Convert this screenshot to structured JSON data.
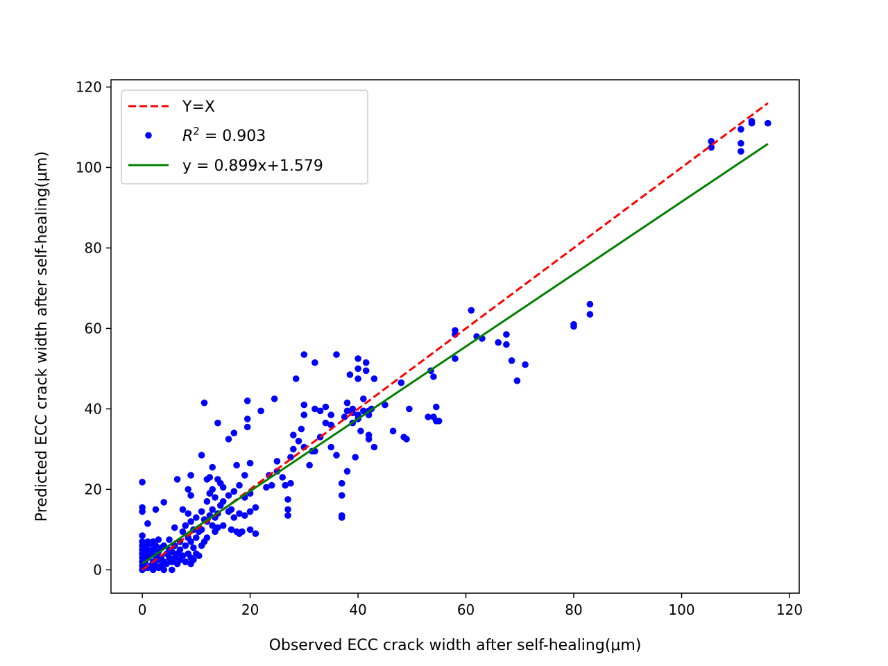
{
  "colors": {
    "points": "#0000ff",
    "identity_line": "#ff0000",
    "fit_line": "#008000",
    "axes": "#000000",
    "legend_border": "#cccccc"
  },
  "chart_data": {
    "type": "scatter",
    "title": "",
    "xlabel": "Observed ECC crack width after self-healing(μm)",
    "ylabel": "Predicted ECC crack width after self-healing(μm)",
    "xlim": [
      -5.8,
      121.8
    ],
    "ylim": [
      -5.8,
      121.8
    ],
    "xticks": [
      0,
      20,
      40,
      60,
      80,
      100,
      120
    ],
    "yticks": [
      0,
      20,
      40,
      60,
      80,
      100,
      120
    ],
    "grid": false,
    "legend_position": "top-left",
    "legend": [
      {
        "label": "Y=X",
        "style": "dashed-line",
        "color": "#ff0000"
      },
      {
        "label": "R² = 0.903",
        "style": "marker",
        "color": "#0000ff",
        "r2_symbol": "R",
        "r2_sup": "2",
        "r2_value": " = 0.903"
      },
      {
        "label": "y = 0.899x+1.579",
        "style": "solid-line",
        "color": "#008000"
      }
    ],
    "series": [
      {
        "name": "Y=X",
        "kind": "line",
        "x": [
          0,
          116
        ],
        "y": [
          0,
          116
        ]
      },
      {
        "name": "y = 0.899x+1.579",
        "kind": "line",
        "slope": 0.899,
        "intercept": 1.579,
        "x": [
          0,
          116
        ],
        "y": [
          1.579,
          105.863
        ]
      },
      {
        "name": "R² = 0.903",
        "kind": "scatter",
        "points": [
          [
            0,
            0
          ],
          [
            0,
            1
          ],
          [
            0,
            2
          ],
          [
            0,
            3
          ],
          [
            0,
            4
          ],
          [
            0,
            5
          ],
          [
            0,
            6
          ],
          [
            0,
            7
          ],
          [
            0,
            8.5
          ],
          [
            0,
            14.5
          ],
          [
            0,
            15.5
          ],
          [
            0,
            21.8
          ],
          [
            0.5,
            0.5
          ],
          [
            0.5,
            2
          ],
          [
            0.5,
            4
          ],
          [
            0.5,
            6
          ],
          [
            1,
            0.5
          ],
          [
            1,
            3
          ],
          [
            1,
            5
          ],
          [
            1,
            7
          ],
          [
            1,
            11.5
          ],
          [
            1.5,
            1
          ],
          [
            1.5,
            4
          ],
          [
            1.5,
            6.5
          ],
          [
            2,
            0
          ],
          [
            2,
            2
          ],
          [
            2,
            5
          ],
          [
            2,
            7
          ],
          [
            2.5,
            1
          ],
          [
            2.5,
            3.5
          ],
          [
            2.5,
            6
          ],
          [
            2.5,
            15
          ],
          [
            3,
            0.5
          ],
          [
            3,
            2.5
          ],
          [
            3,
            4.5
          ],
          [
            3,
            7.5
          ],
          [
            3.5,
            1
          ],
          [
            3.5,
            3
          ],
          [
            3.5,
            5.5
          ],
          [
            4,
            0
          ],
          [
            4,
            2
          ],
          [
            4,
            6
          ],
          [
            4,
            16.8
          ],
          [
            4.5,
            1.5
          ],
          [
            4.5,
            4
          ],
          [
            5,
            3
          ],
          [
            5,
            5
          ],
          [
            5,
            7.5
          ],
          [
            5.5,
            0
          ],
          [
            5.5,
            2
          ],
          [
            5.5,
            4.5
          ],
          [
            6,
            3
          ],
          [
            6,
            6
          ],
          [
            6,
            10.5
          ],
          [
            6.5,
            1.5
          ],
          [
            6.5,
            4
          ],
          [
            6.5,
            22.5
          ],
          [
            7,
            2.5
          ],
          [
            7,
            5
          ],
          [
            7,
            7
          ],
          [
            7.5,
            3.5
          ],
          [
            7.5,
            9.5
          ],
          [
            7.5,
            15
          ],
          [
            8,
            2
          ],
          [
            8,
            6
          ],
          [
            8,
            11
          ],
          [
            8.5,
            4
          ],
          [
            8.5,
            8
          ],
          [
            8.5,
            14
          ],
          [
            8.5,
            20
          ],
          [
            9,
            1.5
          ],
          [
            9,
            3
          ],
          [
            9,
            7
          ],
          [
            9,
            12
          ],
          [
            9,
            18.5
          ],
          [
            9,
            23.5
          ],
          [
            9.5,
            2.5
          ],
          [
            9.5,
            5.5
          ],
          [
            9.5,
            10
          ],
          [
            10,
            4
          ],
          [
            10,
            8
          ],
          [
            10,
            13
          ],
          [
            10.5,
            3.5
          ],
          [
            10.5,
            9.5
          ],
          [
            11,
            6
          ],
          [
            11,
            10
          ],
          [
            11,
            14.5
          ],
          [
            11,
            28.5
          ],
          [
            11.5,
            7
          ],
          [
            11.5,
            12.5
          ],
          [
            11.5,
            41.5
          ],
          [
            12,
            8
          ],
          [
            12,
            12
          ],
          [
            12,
            17
          ],
          [
            12,
            22.5
          ],
          [
            12.5,
            13.5
          ],
          [
            12.5,
            19
          ],
          [
            12.5,
            23
          ],
          [
            13,
            11
          ],
          [
            13,
            15
          ],
          [
            13,
            20
          ],
          [
            13,
            25.5
          ],
          [
            13.5,
            9.5
          ],
          [
            13.5,
            13
          ],
          [
            13.5,
            18
          ],
          [
            14,
            10.5
          ],
          [
            14,
            14
          ],
          [
            14,
            22.5
          ],
          [
            14,
            36.5
          ],
          [
            14.5,
            16
          ],
          [
            14.5,
            21.5
          ],
          [
            15,
            11
          ],
          [
            15,
            17
          ],
          [
            15,
            20.5
          ],
          [
            16,
            14.5
          ],
          [
            16,
            18.5
          ],
          [
            16,
            32.5
          ],
          [
            16.5,
            10
          ],
          [
            16.5,
            15
          ],
          [
            17,
            13
          ],
          [
            17,
            19.5
          ],
          [
            17,
            34
          ],
          [
            17.5,
            9.5
          ],
          [
            17.5,
            26
          ],
          [
            18,
            9
          ],
          [
            18,
            14
          ],
          [
            18,
            21
          ],
          [
            18.5,
            9.5
          ],
          [
            19,
            13.5
          ],
          [
            19,
            18
          ],
          [
            19,
            23.5
          ],
          [
            19.5,
            35.5
          ],
          [
            19.5,
            37.5
          ],
          [
            19.5,
            42
          ],
          [
            20,
            10
          ],
          [
            20,
            14.5
          ],
          [
            20,
            19
          ],
          [
            20,
            26.5
          ],
          [
            21,
            9
          ],
          [
            21,
            15.5
          ],
          [
            22,
            39.5
          ],
          [
            23,
            20.5
          ],
          [
            23.5,
            23.5
          ],
          [
            24,
            21
          ],
          [
            24.5,
            42.5
          ],
          [
            25,
            24.5
          ],
          [
            25,
            27
          ],
          [
            26,
            23
          ],
          [
            26.5,
            21
          ],
          [
            27,
            13.5
          ],
          [
            27,
            15
          ],
          [
            27,
            17.5
          ],
          [
            27.5,
            21.5
          ],
          [
            27.5,
            28
          ],
          [
            28,
            30
          ],
          [
            28,
            33.5
          ],
          [
            28.5,
            47.5
          ],
          [
            29,
            32
          ],
          [
            29.5,
            35
          ],
          [
            30,
            41
          ],
          [
            30,
            38.5
          ],
          [
            30,
            30.5
          ],
          [
            30,
            53.5
          ],
          [
            31,
            26
          ],
          [
            31.5,
            29.5
          ],
          [
            32,
            29.5
          ],
          [
            32,
            40
          ],
          [
            32,
            51.5
          ],
          [
            33,
            33
          ],
          [
            33,
            39.5
          ],
          [
            34,
            36.5
          ],
          [
            34,
            40.5
          ],
          [
            35,
            36
          ],
          [
            35,
            38.5
          ],
          [
            35,
            30.5
          ],
          [
            36,
            28.5
          ],
          [
            36,
            53.5
          ],
          [
            37,
            21.5
          ],
          [
            37,
            18.5
          ],
          [
            37,
            13.5
          ],
          [
            37,
            13
          ],
          [
            37.5,
            38
          ],
          [
            38,
            24.5
          ],
          [
            38,
            39.5
          ],
          [
            38,
            41.5
          ],
          [
            38.5,
            48.5
          ],
          [
            39,
            40
          ],
          [
            39,
            36.5
          ],
          [
            39,
            39
          ],
          [
            39.5,
            28
          ],
          [
            40,
            52.5
          ],
          [
            40,
            50
          ],
          [
            40,
            38.5
          ],
          [
            40,
            37.5
          ],
          [
            40,
            47.5
          ],
          [
            40.5,
            34.5
          ],
          [
            41,
            39.5
          ],
          [
            41,
            42.5
          ],
          [
            41.5,
            51.5
          ],
          [
            41.5,
            49.5
          ],
          [
            42,
            33.5
          ],
          [
            42,
            32.5
          ],
          [
            42,
            38.5
          ],
          [
            42,
            39.5
          ],
          [
            42.5,
            40
          ],
          [
            43,
            47.5
          ],
          [
            43,
            30.5
          ],
          [
            45,
            41
          ],
          [
            46.5,
            34.5
          ],
          [
            48,
            46.5
          ],
          [
            48.5,
            33
          ],
          [
            49,
            32.5
          ],
          [
            49.5,
            40
          ],
          [
            53,
            38
          ],
          [
            53.5,
            49.5
          ],
          [
            54,
            48
          ],
          [
            54,
            38
          ],
          [
            54.5,
            40.5
          ],
          [
            54.5,
            37
          ],
          [
            55,
            37
          ],
          [
            58,
            59.5
          ],
          [
            58,
            58.5
          ],
          [
            58,
            52.5
          ],
          [
            61,
            64.5
          ],
          [
            62,
            58
          ],
          [
            63,
            57.5
          ],
          [
            66,
            56.5
          ],
          [
            67.5,
            58.5
          ],
          [
            67.5,
            56
          ],
          [
            68.5,
            52
          ],
          [
            69.5,
            47
          ],
          [
            71,
            51
          ],
          [
            80,
            61
          ],
          [
            80,
            60.5
          ],
          [
            83,
            66
          ],
          [
            83,
            63.5
          ],
          [
            105.5,
            106.5
          ],
          [
            105.5,
            105
          ],
          [
            111,
            109.5
          ],
          [
            111,
            106
          ],
          [
            111,
            104
          ],
          [
            113,
            111.5
          ],
          [
            113,
            111
          ],
          [
            116,
            111
          ]
        ]
      }
    ]
  }
}
